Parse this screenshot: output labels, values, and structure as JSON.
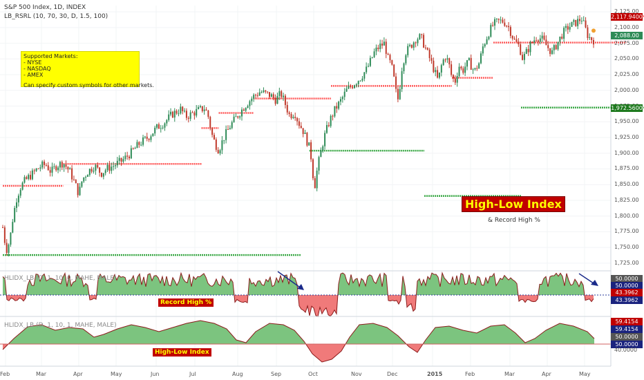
{
  "header": {
    "title": "S&P 500 Index, 1D, INDEX",
    "indicator": "LB_RSRL (10, 70, 30, D, 1.5, 100)"
  },
  "note": {
    "heading": "Supported Markets:",
    "markets": [
      "- NYSE",
      "- NASDAQ",
      "- AMEX"
    ],
    "footer": "Can specify custom symbols for other markets."
  },
  "annotations": {
    "big_title": "High-Low Index",
    "subtitle": "& Record High %"
  },
  "colors": {
    "up_candle": "#2e8b57",
    "down_candle": "#c0392b",
    "resistance": "#ff5a5a",
    "support": "#3aa845",
    "area_up": "#7cc47f",
    "area_down": "#f07a7a",
    "arrow": "#1a2a8a"
  },
  "chart_data": [
    {
      "type": "candlestick",
      "title": "S&P 500 Index, 1D, INDEX",
      "ylim": [
        1715,
        2135
      ],
      "yticks": [
        "2,125.00",
        "2,100.00",
        "2,075.00",
        "2,050.00",
        "2,025.00",
        "2,000.00",
        "1,975.00",
        "1,950.00",
        "1,925.00",
        "1,900.00",
        "1,875.00",
        "1,850.00",
        "1,825.00",
        "1,800.00",
        "1,775.00",
        "1,750.00",
        "1,725.00"
      ],
      "x_labels": [
        "Feb",
        "Mar",
        "Apr",
        "May",
        "Jun",
        "Jul",
        "Aug",
        "Sep",
        "Oct",
        "Nov",
        "Dec",
        "2015",
        "Feb",
        "Mar",
        "Apr",
        "May"
      ],
      "price_path": [
        [
          0,
          1782
        ],
        [
          4,
          1745
        ],
        [
          8,
          1760
        ],
        [
          12,
          1800
        ],
        [
          16,
          1828
        ],
        [
          20,
          1845
        ],
        [
          25,
          1855
        ],
        [
          30,
          1862
        ],
        [
          35,
          1868
        ],
        [
          40,
          1875
        ],
        [
          45,
          1880
        ],
        [
          50,
          1882
        ],
        [
          56,
          1870
        ],
        [
          62,
          1880
        ],
        [
          70,
          1885
        ],
        [
          78,
          1870
        ],
        [
          84,
          1850
        ],
        [
          88,
          1835
        ],
        [
          92,
          1858
        ],
        [
          98,
          1870
        ],
        [
          106,
          1880
        ],
        [
          114,
          1868
        ],
        [
          120,
          1875
        ],
        [
          128,
          1880
        ],
        [
          138,
          1888
        ],
        [
          148,
          1900
        ],
        [
          158,
          1915
        ],
        [
          168,
          1925
        ],
        [
          178,
          1940
        ],
        [
          188,
          1950
        ],
        [
          196,
          1962
        ],
        [
          206,
          1970
        ],
        [
          212,
          1958
        ],
        [
          218,
          1962
        ],
        [
          226,
          1968
        ],
        [
          234,
          1972
        ],
        [
          238,
          1958
        ],
        [
          242,
          1930
        ],
        [
          246,
          1915
        ],
        [
          250,
          1905
        ],
        [
          256,
          1925
        ],
        [
          264,
          1945
        ],
        [
          272,
          1960
        ],
        [
          280,
          1975
        ],
        [
          290,
          1990
        ],
        [
          298,
          1998
        ],
        [
          304,
          1995
        ],
        [
          310,
          1992
        ],
        [
          316,
          1985
        ],
        [
          322,
          1995
        ],
        [
          326,
          1982
        ],
        [
          332,
          1960
        ],
        [
          338,
          1965
        ],
        [
          342,
          1950
        ],
        [
          348,
          1935
        ],
        [
          352,
          1920
        ],
        [
          356,
          1905
        ],
        [
          360,
          1855
        ],
        [
          362,
          1848
        ],
        [
          364,
          1875
        ],
        [
          368,
          1900
        ],
        [
          372,
          1925
        ],
        [
          378,
          1950
        ],
        [
          384,
          1968
        ],
        [
          392,
          1985
        ],
        [
          398,
          2000
        ],
        [
          406,
          2010
        ],
        [
          414,
          2020
        ],
        [
          422,
          2035
        ],
        [
          430,
          2060
        ],
        [
          436,
          2070
        ],
        [
          442,
          2075
        ],
        [
          446,
          2050
        ],
        [
          450,
          2040
        ],
        [
          454,
          2010
        ],
        [
          456,
          1990
        ],
        [
          458,
          1985
        ],
        [
          462,
          2035
        ],
        [
          466,
          2060
        ],
        [
          472,
          2070
        ],
        [
          478,
          2082
        ],
        [
          484,
          2085
        ],
        [
          490,
          2065
        ],
        [
          496,
          2045
        ],
        [
          500,
          2030
        ],
        [
          504,
          2015
        ],
        [
          508,
          2040
        ],
        [
          512,
          2055
        ],
        [
          516,
          2045
        ],
        [
          520,
          2020
        ],
        [
          524,
          2015
        ],
        [
          528,
          2040
        ],
        [
          532,
          2030
        ],
        [
          536,
          2040
        ],
        [
          540,
          2045
        ],
        [
          546,
          2030
        ],
        [
          552,
          2045
        ],
        [
          556,
          2070
        ],
        [
          562,
          2090
        ],
        [
          568,
          2105
        ],
        [
          574,
          2110
        ],
        [
          580,
          2110
        ],
        [
          586,
          2100
        ],
        [
          592,
          2080
        ],
        [
          598,
          2070
        ],
        [
          602,
          2050
        ],
        [
          606,
          2060
        ],
        [
          612,
          2075
        ],
        [
          618,
          2085
        ],
        [
          624,
          2082
        ],
        [
          630,
          2070
        ],
        [
          636,
          2060
        ],
        [
          642,
          2075
        ],
        [
          648,
          2090
        ],
        [
          654,
          2100
        ],
        [
          660,
          2105
        ],
        [
          666,
          2110
        ],
        [
          670,
          2115
        ],
        [
          674,
          2100
        ],
        [
          678,
          2085
        ],
        [
          684,
          2080
        ]
      ],
      "resistance_levels": [
        {
          "value": 1848,
          "from": 0,
          "to": 70
        },
        {
          "value": 1883,
          "from": 70,
          "to": 230
        },
        {
          "value": 1940,
          "from": 230,
          "to": 250
        },
        {
          "value": 1964,
          "from": 250,
          "to": 290
        },
        {
          "value": 1987,
          "from": 290,
          "to": 380
        },
        {
          "value": 2007,
          "from": 380,
          "to": 520
        },
        {
          "value": 2020,
          "from": 520,
          "to": 568
        },
        {
          "value": 2076,
          "from": 568,
          "to": 722
        },
        {
          "value": 2118,
          "from": 722,
          "to": 860
        }
      ],
      "support_levels": [
        {
          "value": 1738,
          "from": 0,
          "to": 345
        },
        {
          "value": 1904,
          "from": 355,
          "to": 488
        },
        {
          "value": 1832,
          "from": 488,
          "to": 600
        },
        {
          "value": 1972.56,
          "from": 600,
          "to": 860
        }
      ],
      "price_tags": [
        {
          "label": "2,117.9400",
          "value": 2117.94,
          "color": "#c00000"
        },
        {
          "label": "2,088.00",
          "value": 2088,
          "color": "#2e8b57"
        },
        {
          "label": "1,972.5600",
          "value": 1972.56,
          "color": "#1f7a1f"
        }
      ]
    },
    {
      "type": "area",
      "title": "HLIDX_LB (D, 1, 10, 0, MAHE, MALE)",
      "label": "Record High %",
      "baseline": 43.3962,
      "ylim": [
        25,
        53
      ],
      "price_tags": [
        {
          "label": "50.0000",
          "color": "#555555"
        },
        {
          "label": "50.0000",
          "color": "#1a237e"
        },
        {
          "label": "43.3962",
          "color": "#c00000"
        },
        {
          "label": "43.3962",
          "color": "#1a237e"
        }
      ]
    },
    {
      "type": "area",
      "title": "HLIDX_LB (D, 1, 10, 1, MAHE, MALE)",
      "label": "High-Low Index",
      "baseline": 50,
      "ylim": [
        36,
        62
      ],
      "yticks": [
        "59.4154",
        "40.0000"
      ],
      "price_tags": [
        {
          "label": "59.4154",
          "color": "#c00000"
        },
        {
          "label": "59.4154",
          "color": "#1a237e"
        },
        {
          "label": "50.0000",
          "color": "#555555"
        },
        {
          "label": "50.0000",
          "color": "#1a237e"
        }
      ]
    }
  ]
}
